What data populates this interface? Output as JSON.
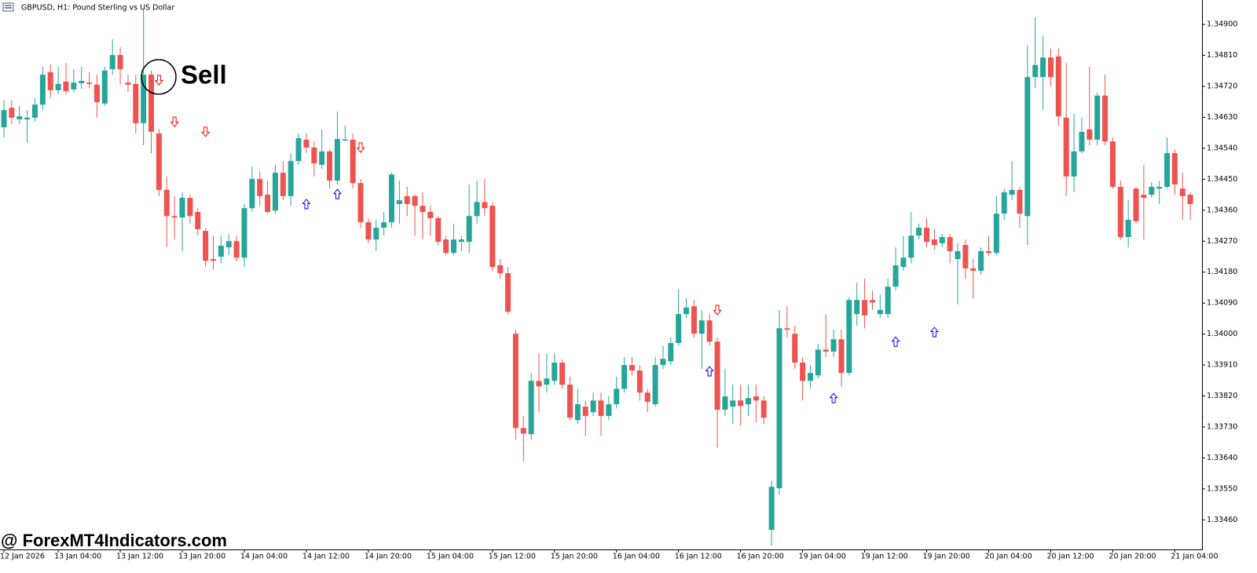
{
  "chart_data": {
    "type": "candlestick",
    "title": "GBPUSD, H1:  Pound Sterling vs US Dollar",
    "annotation": "Sell",
    "watermark": "@ ForexMT4Indicators.com",
    "up_color": "#26a69a",
    "down_color": "#ef5350",
    "buy_color": "#0000ff",
    "sell_color": "#ff0000",
    "ylim": [
      1.33374,
      1.34971
    ],
    "yticks": [
      {
        "value": 1.349,
        "label": "1.34900"
      },
      {
        "value": 1.3481,
        "label": "1.34810"
      },
      {
        "value": 1.3472,
        "label": "1.34720"
      },
      {
        "value": 1.3463,
        "label": "1.34630"
      },
      {
        "value": 1.3454,
        "label": "1.34540"
      },
      {
        "value": 1.3445,
        "label": "1.34450"
      },
      {
        "value": 1.3436,
        "label": "1.34360"
      },
      {
        "value": 1.3427,
        "label": "1.34270"
      },
      {
        "value": 1.3418,
        "label": "1.34180"
      },
      {
        "value": 1.3409,
        "label": "1.34090"
      },
      {
        "value": 1.34,
        "label": "1.34000"
      },
      {
        "value": 1.3391,
        "label": "1.33910"
      },
      {
        "value": 1.3382,
        "label": "1.33820"
      },
      {
        "value": 1.3373,
        "label": "1.33730"
      },
      {
        "value": 1.3364,
        "label": "1.33640"
      },
      {
        "value": 1.3355,
        "label": "1.33550"
      },
      {
        "value": 1.3346,
        "label": "1.33460"
      }
    ],
    "xticks": [
      {
        "value": 0,
        "label": "12 Jan 2026"
      },
      {
        "value": 7,
        "label": "13 Jan 04:00"
      },
      {
        "value": 15,
        "label": "13 Jan 12:00"
      },
      {
        "value": 23,
        "label": "13 Jan 20:00"
      },
      {
        "value": 31,
        "label": "14 Jan 04:00"
      },
      {
        "value": 39,
        "label": "14 Jan 12:00"
      },
      {
        "value": 47,
        "label": "14 Jan 20:00"
      },
      {
        "value": 55,
        "label": "15 Jan 04:00"
      },
      {
        "value": 63,
        "label": "15 Jan 12:00"
      },
      {
        "value": 71,
        "label": "15 Jan 20:00"
      },
      {
        "value": 79,
        "label": "16 Jan 04:00"
      },
      {
        "value": 87,
        "label": "16 Jan 12:00"
      },
      {
        "value": 95,
        "label": "16 Jan 20:00"
      },
      {
        "value": 103,
        "label": "19 Jan 04:00"
      },
      {
        "value": 111,
        "label": "19 Jan 12:00"
      },
      {
        "value": 119,
        "label": "19 Jan 20:00"
      },
      {
        "value": 127,
        "label": "20 Jan 04:00"
      },
      {
        "value": 135,
        "label": "20 Jan 12:00"
      },
      {
        "value": 143,
        "label": "20 Jan 20:00"
      },
      {
        "value": 151,
        "label": "21 Jan 04:00"
      }
    ],
    "open": [
      1.34601,
      1.34658,
      1.34624,
      1.34624,
      1.34629,
      1.34667,
      1.34761,
      1.34709,
      1.34734,
      1.34711,
      1.34729,
      1.34731,
      1.34725,
      1.3467,
      1.3477,
      1.34811,
      1.34731,
      1.34727,
      1.34613,
      1.34754,
      1.34583,
      1.34419,
      1.34343,
      1.34339,
      1.34396,
      1.34355,
      1.343,
      1.34218,
      1.34225,
      1.34252,
      1.3427,
      1.34222,
      1.34366,
      1.34451,
      1.34405,
      1.34359,
      1.34469,
      1.34401,
      1.34503,
      1.34565,
      1.34542,
      1.34492,
      1.34531,
      1.34446,
      1.34563,
      1.34565,
      1.34439,
      1.34325,
      1.34275,
      1.34309,
      1.34325,
      1.34378,
      1.34401,
      1.34401,
      1.34373,
      1.34355,
      1.34337,
      1.34275,
      1.34236,
      1.34268,
      1.34268,
      1.34343,
      1.34384,
      1.34373,
      1.342,
      1.34177,
      1.34001,
      1.33727,
      1.33709,
      1.33864,
      1.33853,
      1.33864,
      1.33917,
      1.33853,
      1.3375,
      1.33789,
      1.33773,
      1.33807,
      1.33762,
      1.33796,
      1.33841,
      1.3391,
      1.33894,
      1.3383,
      1.33796,
      1.3391,
      1.33921,
      1.33974,
      1.34058,
      1.34081,
      1.34001,
      1.3404,
      1.33978,
      1.3378,
      1.33789,
      1.33807,
      1.33796,
      1.33819,
      1.33807,
      1.33431,
      1.33552,
      1.34017,
      1.34001,
      1.33917,
      1.33864,
      1.3388,
      1.33955,
      1.33949,
      1.33985,
      1.33887,
      1.34058,
      1.34099,
      1.34099,
      1.34058,
      1.34058,
      1.34138,
      1.34195,
      1.34222,
      1.34286,
      1.34309,
      1.34275,
      1.34264,
      1.34282,
      1.34218,
      1.34259,
      1.34191,
      1.34184,
      1.34241,
      1.34236,
      1.3435,
      1.34405,
      1.34419,
      1.34343,
      1.34747,
      1.34747,
      1.34804,
      1.34807,
      1.34629,
      1.34458,
      1.34531,
      1.34595,
      1.34565,
      1.34693,
      1.3456,
      1.34428,
      1.34282,
      1.34423,
      1.34405,
      1.34405,
      1.34423,
      1.34428,
      1.34526,
      1.34423,
      1.34405
    ],
    "high": [
      1.34679,
      1.34679,
      1.34663,
      1.34651,
      1.34686,
      1.34777,
      1.34784,
      1.34777,
      1.34788,
      1.3477,
      1.34777,
      1.34761,
      1.34754,
      1.34777,
      1.34857,
      1.34834,
      1.34754,
      1.34754,
      1.34948,
      1.34766,
      1.34595,
      1.34458,
      1.34401,
      1.34412,
      1.34405,
      1.34366,
      1.34309,
      1.34286,
      1.34286,
      1.34291,
      1.34286,
      1.34378,
      1.34487,
      1.34473,
      1.34446,
      1.34492,
      1.34503,
      1.34526,
      1.34583,
      1.34583,
      1.3456,
      1.34595,
      1.34537,
      1.34647,
      1.34606,
      1.34583,
      1.34451,
      1.34337,
      1.34332,
      1.34355,
      1.34469,
      1.34446,
      1.34428,
      1.34405,
      1.34412,
      1.34373,
      1.34343,
      1.34286,
      1.34321,
      1.34286,
      1.34435,
      1.34446,
      1.34451,
      1.34382,
      1.34218,
      1.34195,
      1.34013,
      1.33762,
      1.33887,
      1.33944,
      1.33944,
      1.33944,
      1.33926,
      1.33876,
      1.33841,
      1.33807,
      1.3383,
      1.3383,
      1.33819,
      1.33876,
      1.33933,
      1.33933,
      1.3391,
      1.33841,
      1.33933,
      1.33967,
      1.3399,
      1.34131,
      1.34104,
      1.34099,
      1.3407,
      1.34058,
      1.3399,
      1.33899,
      1.33853,
      1.33853,
      1.33853,
      1.33853,
      1.33819,
      1.33574,
      1.3407,
      1.34081,
      1.34024,
      1.33933,
      1.3391,
      1.33971,
      1.34058,
      1.34013,
      1.34013,
      1.34108,
      1.34149,
      1.34161,
      1.34127,
      1.34115,
      1.34161,
      1.34252,
      1.34286,
      1.34355,
      1.34321,
      1.34337,
      1.34305,
      1.34291,
      1.34291,
      1.34264,
      1.34275,
      1.34218,
      1.34252,
      1.34286,
      1.34401,
      1.34423,
      1.34503,
      1.34428,
      1.34839,
      1.34921,
      1.34868,
      1.3483,
      1.3483,
      1.34788,
      1.3464,
      1.34629,
      1.34777,
      1.34702,
      1.34754,
      1.34572,
      1.34446,
      1.34389,
      1.34428,
      1.34492,
      1.34442,
      1.34446,
      1.34572,
      1.34537,
      1.34469,
      1.34412
    ],
    "low": [
      1.34572,
      1.3461,
      1.3461,
      1.34556,
      1.34617,
      1.34651,
      1.34686,
      1.34697,
      1.34697,
      1.34702,
      1.34713,
      1.34715,
      1.34629,
      1.34663,
      1.34754,
      1.34725,
      1.34704,
      1.34583,
      1.34549,
      1.34526,
      1.34401,
      1.34252,
      1.34275,
      1.34241,
      1.34321,
      1.34286,
      1.34195,
      1.34188,
      1.34206,
      1.34229,
      1.34211,
      1.34195,
      1.34355,
      1.34373,
      1.3435,
      1.3435,
      1.34389,
      1.34373,
      1.34492,
      1.34526,
      1.34458,
      1.3448,
      1.34423,
      1.34435,
      1.3456,
      1.34423,
      1.34309,
      1.34264,
      1.34241,
      1.34286,
      1.34309,
      1.34321,
      1.34343,
      1.34286,
      1.34275,
      1.34286,
      1.34259,
      1.34229,
      1.34229,
      1.34241,
      1.34236,
      1.34321,
      1.34343,
      1.34184,
      1.34161,
      1.34058,
      1.33693,
      1.33629,
      1.33693,
      1.33773,
      1.3383,
      1.33853,
      1.33841,
      1.3375,
      1.33739,
      1.33704,
      1.33762,
      1.33704,
      1.3375,
      1.33784,
      1.3383,
      1.3388,
      1.33807,
      1.33773,
      1.33789,
      1.33899,
      1.3391,
      1.33967,
      1.34047,
      1.3399,
      1.33899,
      1.33967,
      1.3367,
      1.33762,
      1.33739,
      1.33734,
      1.33762,
      1.33743,
      1.33739,
      1.33385,
      1.33533,
      1.3399,
      1.33899,
      1.33807,
      1.33841,
      1.33871,
      1.33933,
      1.33933,
      1.33846,
      1.3388,
      1.34024,
      1.34017,
      1.3407,
      1.34047,
      1.34047,
      1.34127,
      1.34184,
      1.34206,
      1.34275,
      1.34252,
      1.34245,
      1.34252,
      1.34206,
      1.34086,
      1.34161,
      1.34104,
      1.34172,
      1.34229,
      1.34229,
      1.34332,
      1.34389,
      1.34309,
      1.34259,
      1.34715,
      1.34651,
      1.3472,
      1.34606,
      1.34401,
      1.34412,
      1.34526,
      1.34549,
      1.34549,
      1.34549,
      1.34423,
      1.34275,
      1.34252,
      1.34321,
      1.34275,
      1.34396,
      1.34378,
      1.34423,
      1.34405,
      1.34332,
      1.34332
    ],
    "close": [
      1.34651,
      1.34629,
      1.34633,
      1.34629,
      1.34667,
      1.34754,
      1.34709,
      1.34727,
      1.34706,
      1.34731,
      1.34736,
      1.34727,
      1.34674,
      1.34766,
      1.34811,
      1.3477,
      1.34725,
      1.34613,
      1.34754,
      1.34588,
      1.34419,
      1.34343,
      1.34339,
      1.34396,
      1.34343,
      1.34305,
      1.34213,
      1.34213,
      1.34257,
      1.3427,
      1.34222,
      1.34366,
      1.34451,
      1.34401,
      1.34355,
      1.34469,
      1.34401,
      1.34503,
      1.34569,
      1.34542,
      1.34496,
      1.34531,
      1.34446,
      1.34567,
      1.34566,
      1.34439,
      1.34325,
      1.34275,
      1.34309,
      1.34325,
      1.34464,
      1.34389,
      1.34378,
      1.34373,
      1.34355,
      1.34337,
      1.34268,
      1.34236,
      1.34275,
      1.34275,
      1.34343,
      1.34384,
      1.34366,
      1.34195,
      1.34177,
      1.34065,
      1.33727,
      1.33711,
      1.33864,
      1.33848,
      1.33871,
      1.33917,
      1.33853,
      1.33757,
      1.33796,
      1.33762,
      1.33807,
      1.33762,
      1.33796,
      1.33841,
      1.3391,
      1.33894,
      1.3383,
      1.33803,
      1.3391,
      1.33928,
      1.33974,
      1.34058,
      1.34077,
      1.34001,
      1.3404,
      1.33978,
      1.3378,
      1.33819,
      1.33807,
      1.33791,
      1.33814,
      1.33807,
      1.33757,
      1.33556,
      1.34017,
      1.34013,
      1.33917,
      1.33864,
      1.33887,
      1.33955,
      1.33949,
      1.33985,
      1.33887,
      1.34099,
      1.34099,
      1.34054,
      1.34092,
      1.3407,
      1.34138,
      1.342,
      1.34222,
      1.34286,
      1.34309,
      1.34268,
      1.34259,
      1.34282,
      1.34241,
      1.34241,
      1.34191,
      1.34184,
      1.34241,
      1.34236,
      1.3435,
      1.34412,
      1.34419,
      1.3435,
      1.34747,
      1.34782,
      1.34804,
      1.34747,
      1.34633,
      1.34458,
      1.34531,
      1.34588,
      1.34565,
      1.34693,
      1.3456,
      1.34428,
      1.34282,
      1.34332,
      1.34328,
      1.34396,
      1.34428,
      1.34428,
      1.34526,
      1.34435,
      1.34401,
      1.34378
    ],
    "signals": [
      {
        "index": 20,
        "price": 1.34738,
        "direction": "down"
      },
      {
        "index": 22,
        "price": 1.34617,
        "direction": "down"
      },
      {
        "index": 26,
        "price": 1.34588,
        "direction": "down"
      },
      {
        "index": 46,
        "price": 1.34542,
        "direction": "down"
      },
      {
        "index": 92,
        "price": 1.3407,
        "direction": "down"
      },
      {
        "index": 39,
        "price": 1.34378,
        "direction": "up"
      },
      {
        "index": 43,
        "price": 1.34407,
        "direction": "up"
      },
      {
        "index": 91,
        "price": 1.33892,
        "direction": "up"
      },
      {
        "index": 107,
        "price": 1.33814,
        "direction": "up"
      },
      {
        "index": 115,
        "price": 1.33978,
        "direction": "up"
      },
      {
        "index": 120,
        "price": 1.34006,
        "direction": "up"
      }
    ]
  }
}
